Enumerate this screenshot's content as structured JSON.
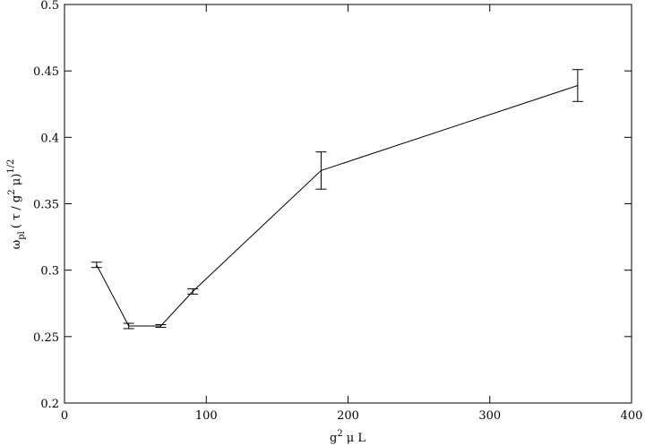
{
  "chart_data": {
    "type": "line",
    "x_label": [
      "g",
      "2",
      "μ  L"
    ],
    "y_label": [
      "ω",
      "pl",
      "( τ / g",
      "2",
      " μ)",
      "1/2"
    ],
    "x": [
      22.6,
      45.3,
      67.9,
      90.5,
      181,
      362
    ],
    "values": [
      0.304,
      0.258,
      0.258,
      0.284,
      0.375,
      0.439
    ],
    "errors": [
      0.002,
      0.002,
      0.001,
      0.002,
      0.014,
      0.012
    ],
    "color": "#000000",
    "xlim": [
      0,
      400
    ],
    "xticks": [
      0,
      100,
      200,
      300,
      400
    ],
    "ylim": [
      0.2,
      0.5
    ],
    "yticks": [
      0.2,
      0.25,
      0.3,
      0.35,
      0.4,
      0.45,
      0.5
    ]
  }
}
